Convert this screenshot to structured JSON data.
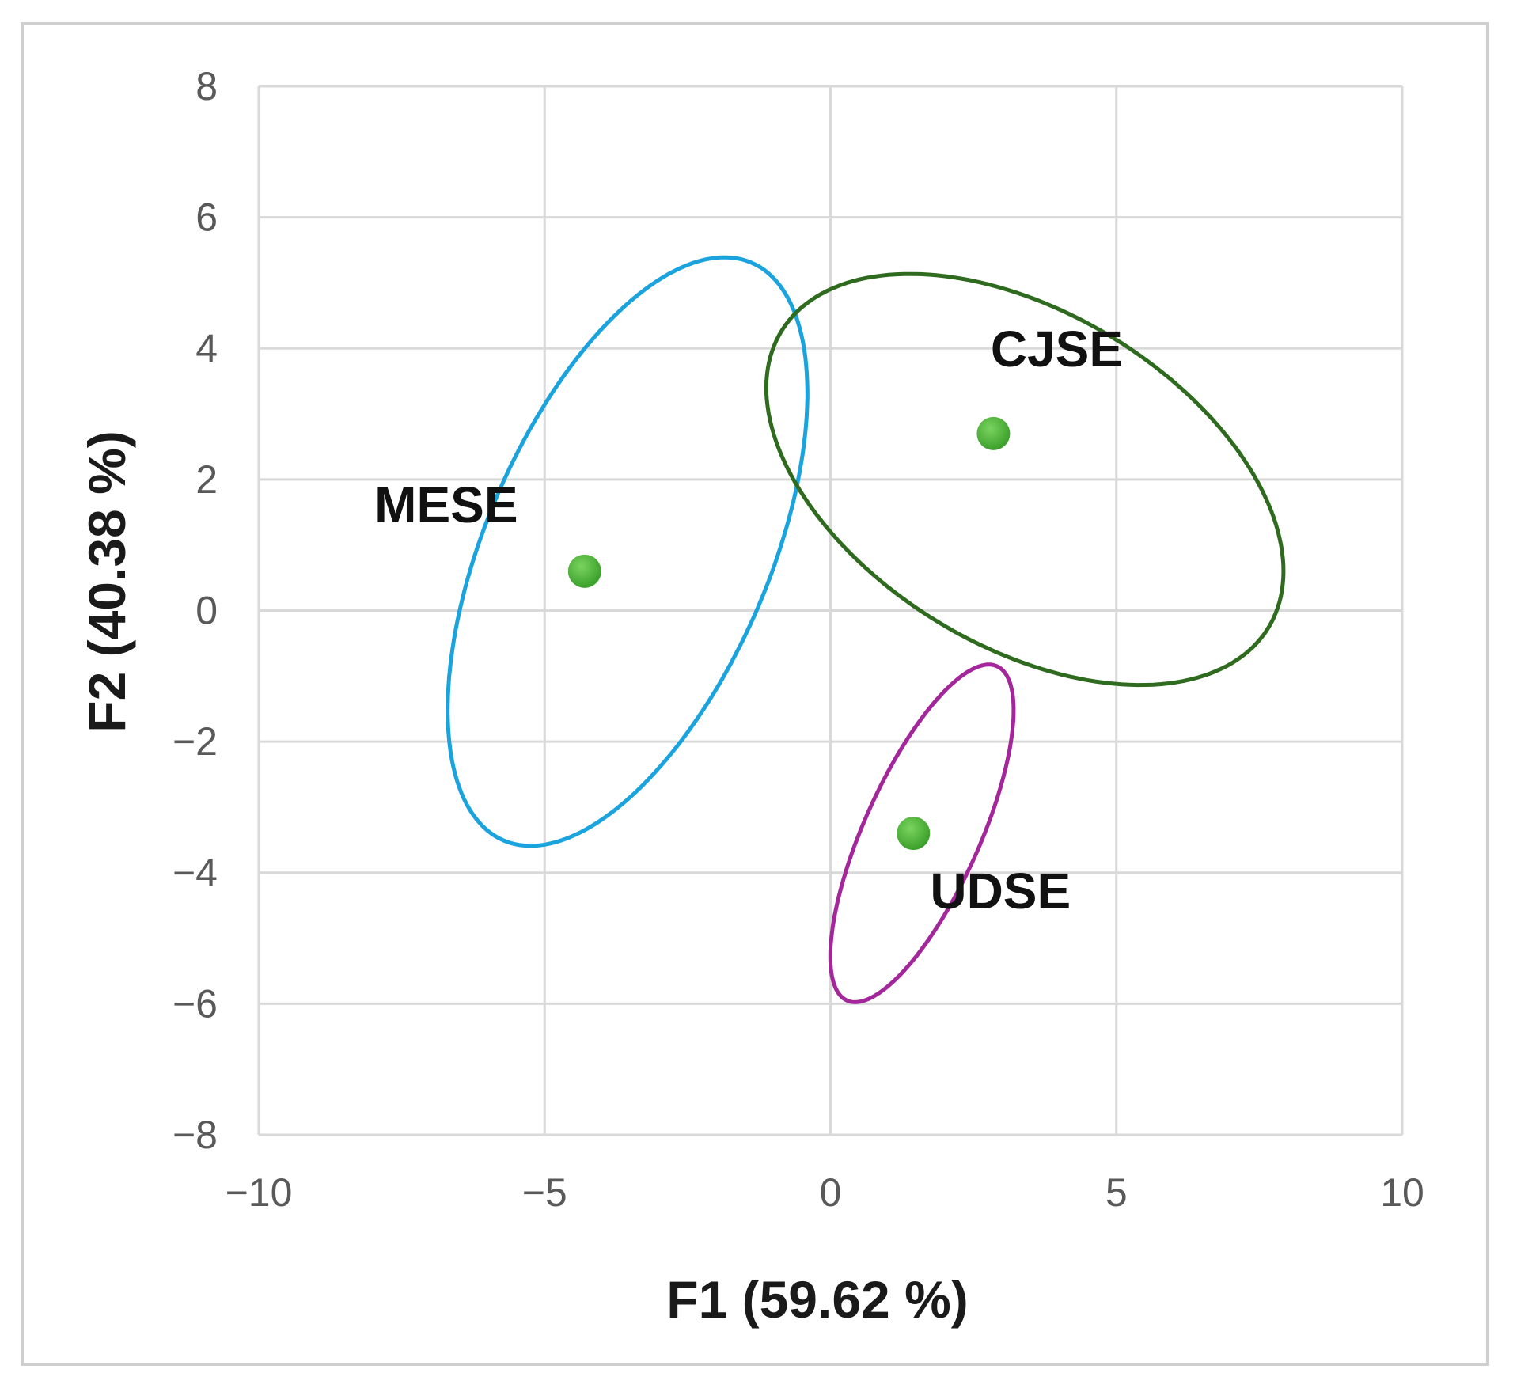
{
  "chart_data": {
    "type": "scatter",
    "xlabel": "F1 (59.62 %)",
    "ylabel": "F2 (40.38 %)",
    "xlim": [
      -10,
      10
    ],
    "ylim": [
      -8,
      8
    ],
    "x_ticks": [
      -10,
      -5,
      0,
      5,
      10
    ],
    "y_ticks": [
      -8,
      -6,
      -4,
      -2,
      0,
      2,
      4,
      6,
      8
    ],
    "x_tick_labels": [
      "−10",
      "−5",
      "0",
      "5",
      "10"
    ],
    "y_tick_labels": [
      "−8",
      "−6",
      "−4",
      "−2",
      "0",
      "2",
      "4",
      "6",
      "8"
    ],
    "grid": true,
    "marker_color": "#3aa02a",
    "points": [
      {
        "label": "MESE",
        "x": -4.3,
        "y": 0.6,
        "ellipse": {
          "cx": -3.55,
          "cy": 0.9,
          "rx": 6.0,
          "ry": 2.95,
          "angle_deg": 62,
          "color": "#1aa3dd"
        }
      },
      {
        "label": "CJSE",
        "x": 2.85,
        "y": 2.7,
        "ellipse": {
          "cx": 3.4,
          "cy": 2.0,
          "rx": 5.9,
          "ry": 3.2,
          "angle_deg": -25,
          "color": "#2f6b1f"
        }
      },
      {
        "label": "UDSE",
        "x": 1.45,
        "y": -3.4,
        "ellipse": {
          "cx": 1.6,
          "cy": -3.4,
          "rx": 3.5,
          "ry": 1.2,
          "angle_deg": 62,
          "color": "#a3279a"
        }
      }
    ]
  }
}
